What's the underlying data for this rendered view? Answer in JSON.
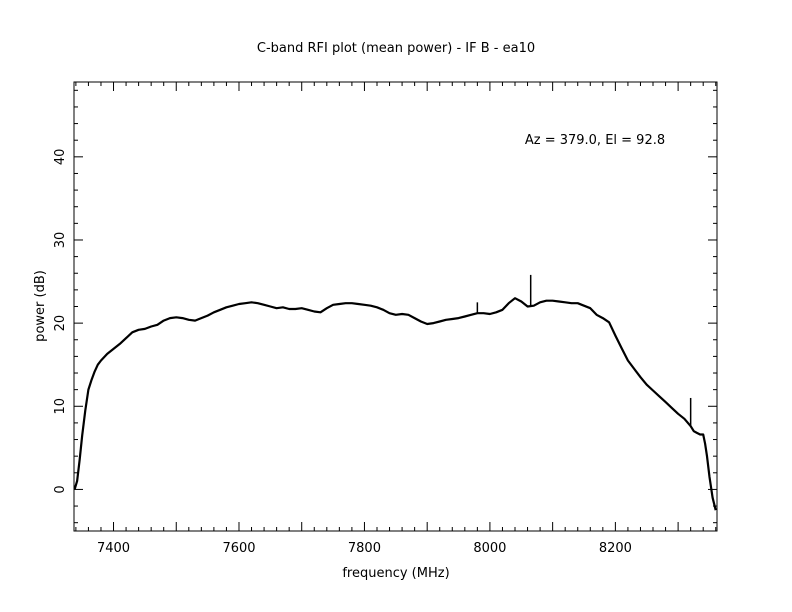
{
  "chart_data": {
    "type": "line",
    "title": "C-band RFI plot (mean power) - IF B - ea10",
    "xlabel": "frequency (MHz)",
    "ylabel": "power (dB)",
    "annotation": "Az = 379.0, El = 92.8",
    "xlim": [
      7337,
      8362
    ],
    "ylim": [
      -5,
      49
    ],
    "x_ticks": [
      7400,
      7600,
      7800,
      8000,
      8200
    ],
    "y_ticks": [
      0,
      10,
      20,
      30,
      40
    ],
    "grid": false,
    "legend": "none",
    "line_color": "#000000",
    "series": [
      {
        "x": [
          7338,
          7342,
          7346,
          7350,
          7355,
          7360,
          7365,
          7370,
          7375,
          7380,
          7390,
          7400,
          7410,
          7420,
          7430,
          7440,
          7450,
          7460,
          7470,
          7480,
          7490,
          7500,
          7510,
          7520,
          7530,
          7540,
          7550,
          7560,
          7570,
          7580,
          7590,
          7600,
          7610,
          7620,
          7630,
          7640,
          7650,
          7660,
          7670,
          7680,
          7690,
          7700,
          7710,
          7720,
          7730,
          7740,
          7750,
          7760,
          7770,
          7780,
          7790,
          7800,
          7810,
          7820,
          7830,
          7840,
          7850,
          7860,
          7870,
          7880,
          7890,
          7900,
          7910,
          7920,
          7930,
          7940,
          7950,
          7960,
          7970,
          7980,
          7990,
          8000,
          8010,
          8020,
          8030,
          8040,
          8050,
          8060,
          8070,
          8080,
          8090,
          8100,
          8110,
          8120,
          8130,
          8140,
          8150,
          8160,
          8170,
          8180,
          8190,
          8200,
          8210,
          8220,
          8230,
          8240,
          8250,
          8260,
          8270,
          8280,
          8290,
          8300,
          8310,
          8320,
          8325,
          8330,
          8335,
          8340,
          8343,
          8346,
          8350,
          8355,
          8360
        ],
        "y": [
          0.0,
          1.0,
          3.5,
          6.5,
          9.5,
          12.0,
          13.2,
          14.2,
          15.0,
          15.5,
          16.3,
          16.9,
          17.5,
          18.2,
          18.9,
          19.2,
          19.3,
          19.6,
          19.8,
          20.3,
          20.6,
          20.7,
          20.6,
          20.4,
          20.3,
          20.6,
          20.9,
          21.3,
          21.6,
          21.9,
          22.1,
          22.3,
          22.4,
          22.5,
          22.4,
          22.2,
          22.0,
          21.8,
          21.9,
          21.7,
          21.7,
          21.8,
          21.6,
          21.4,
          21.3,
          21.8,
          22.2,
          22.3,
          22.4,
          22.4,
          22.3,
          22.2,
          22.1,
          21.9,
          21.6,
          21.2,
          21.0,
          21.1,
          21.0,
          20.6,
          20.2,
          19.9,
          20.0,
          20.2,
          20.4,
          20.5,
          20.6,
          20.8,
          21.0,
          21.2,
          21.2,
          21.1,
          21.3,
          21.6,
          22.4,
          23.0,
          22.6,
          22.0,
          22.1,
          22.5,
          22.7,
          22.7,
          22.6,
          22.5,
          22.4,
          22.4,
          22.1,
          21.8,
          21.0,
          20.6,
          20.1,
          18.5,
          17.0,
          15.5,
          14.5,
          13.5,
          12.6,
          11.9,
          11.2,
          10.5,
          9.8,
          9.1,
          8.5,
          7.6,
          7.0,
          6.8,
          6.6,
          6.6,
          5.5,
          4.0,
          1.5,
          -1.0,
          -2.5
        ],
        "spikes": [
          {
            "x": 7980,
            "y": 22.5
          },
          {
            "x": 8065,
            "y": 25.8
          },
          {
            "x": 8320,
            "y": 11.0
          }
        ]
      }
    ]
  }
}
